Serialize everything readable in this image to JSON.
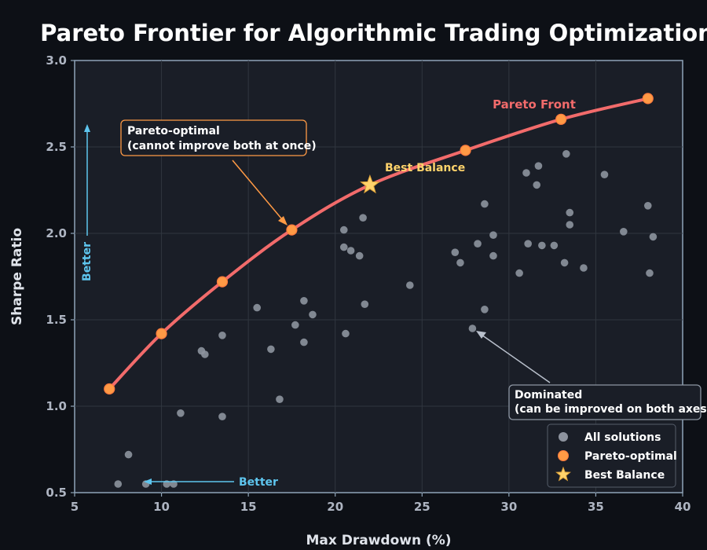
{
  "chart_data": {
    "type": "scatter",
    "title": "Pareto Frontier for Algorithmic Trading Optimization",
    "xlabel": "Max Drawdown (%)",
    "ylabel": "Sharpe Ratio",
    "xlim": [
      5,
      40
    ],
    "ylim": [
      0.5,
      3.0
    ],
    "xticks": [
      5,
      10,
      15,
      20,
      25,
      30,
      35,
      40
    ],
    "yticks": [
      0.5,
      1.0,
      1.5,
      2.0,
      2.5,
      3.0
    ],
    "xtick_labels": [
      "5",
      "10",
      "15",
      "20",
      "25",
      "30",
      "35",
      "40"
    ],
    "ytick_labels": [
      "0.5",
      "1.0",
      "1.5",
      "2.0",
      "2.5",
      "3.0"
    ],
    "grid": true,
    "series": [
      {
        "name": "All solutions",
        "color": "#8d939e",
        "points": [
          [
            7.5,
            0.55
          ],
          [
            9.1,
            0.55
          ],
          [
            10.3,
            0.55
          ],
          [
            10.7,
            0.55
          ],
          [
            8.1,
            0.72
          ],
          [
            11.1,
            0.96
          ],
          [
            13.5,
            0.94
          ],
          [
            12.3,
            1.32
          ],
          [
            12.5,
            1.3
          ],
          [
            13.5,
            1.41
          ],
          [
            15.5,
            1.57
          ],
          [
            16.3,
            1.33
          ],
          [
            16.8,
            1.04
          ],
          [
            17.7,
            1.47
          ],
          [
            18.2,
            1.37
          ],
          [
            18.2,
            1.61
          ],
          [
            18.7,
            1.53
          ],
          [
            20.5,
            2.02
          ],
          [
            20.5,
            1.92
          ],
          [
            20.9,
            1.9
          ],
          [
            21.4,
            1.87
          ],
          [
            21.6,
            2.09
          ],
          [
            21.7,
            1.59
          ],
          [
            20.6,
            1.42
          ],
          [
            24.3,
            1.7
          ],
          [
            26.9,
            1.89
          ],
          [
            27.2,
            1.83
          ],
          [
            27.9,
            1.45
          ],
          [
            28.2,
            1.94
          ],
          [
            28.6,
            2.17
          ],
          [
            28.6,
            1.56
          ],
          [
            29.1,
            1.87
          ],
          [
            29.1,
            1.99
          ],
          [
            30.6,
            1.77
          ],
          [
            31.0,
            2.35
          ],
          [
            31.1,
            1.94
          ],
          [
            31.6,
            2.28
          ],
          [
            31.7,
            2.39
          ],
          [
            31.9,
            1.93
          ],
          [
            32.6,
            1.93
          ],
          [
            33.2,
            1.83
          ],
          [
            33.3,
            2.46
          ],
          [
            33.5,
            2.12
          ],
          [
            33.5,
            2.05
          ],
          [
            34.3,
            1.8
          ],
          [
            35.5,
            2.34
          ],
          [
            36.6,
            2.01
          ],
          [
            38.0,
            2.16
          ],
          [
            38.1,
            1.77
          ],
          [
            38.3,
            1.98
          ]
        ]
      },
      {
        "name": "Pareto-optimal",
        "color": "#ff9a45",
        "points": [
          [
            7.0,
            1.1
          ],
          [
            10.0,
            1.42
          ],
          [
            13.5,
            1.72
          ],
          [
            17.5,
            2.02
          ],
          [
            27.5,
            2.48
          ],
          [
            33.0,
            2.66
          ],
          [
            38.0,
            2.78
          ]
        ]
      },
      {
        "name": "Best Balance",
        "color": "#ffd36b",
        "points": [
          [
            22.0,
            2.28
          ]
        ]
      }
    ],
    "front": {
      "label": "Pareto Front",
      "color": "#f26b6b",
      "curve": [
        [
          7.0,
          1.1
        ],
        [
          10.0,
          1.42
        ],
        [
          13.5,
          1.72
        ],
        [
          17.5,
          2.02
        ],
        [
          22.0,
          2.28
        ],
        [
          27.5,
          2.48
        ],
        [
          33.0,
          2.66
        ],
        [
          38.0,
          2.78
        ]
      ]
    },
    "annotations": [
      {
        "id": "pareto-optimal",
        "lines": [
          "Pareto-optimal",
          "(cannot improve both at once)"
        ],
        "color": "#ff9a45",
        "target": [
          17.5,
          2.02
        ]
      },
      {
        "id": "dominated",
        "lines": [
          "Dominated",
          "(can be improved on both axes)"
        ],
        "color": "#b9c0cc",
        "target": [
          27.9,
          1.45
        ]
      },
      {
        "id": "best-balance",
        "text": "Best Balance",
        "color": "#ffd36b"
      }
    ],
    "better_label": "Better",
    "legend_position": "lower-right"
  }
}
